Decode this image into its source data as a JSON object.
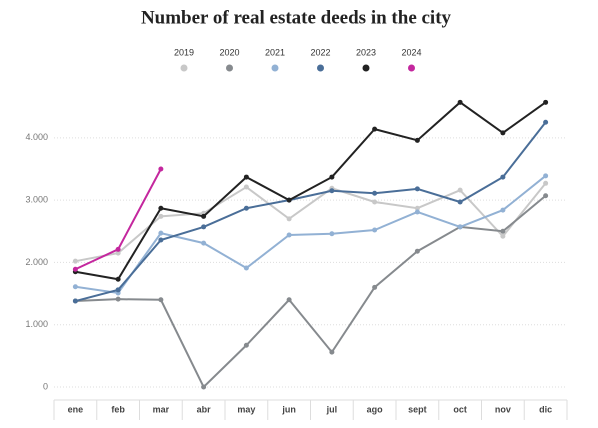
{
  "chart_data": {
    "type": "line",
    "title": "Number of real estate deeds in the city",
    "categories": [
      "ene",
      "feb",
      "mar",
      "abr",
      "may",
      "jun",
      "jul",
      "ago",
      "sept",
      "oct",
      "nov",
      "dic"
    ],
    "series": [
      {
        "name": "2019",
        "color": "#c8c8c8",
        "values": [
          2020,
          2150,
          2740,
          2790,
          3210,
          2700,
          3190,
          2970,
          2870,
          3160,
          2420,
          3270
        ]
      },
      {
        "name": "2020",
        "color": "#868a8e",
        "values": [
          1380,
          1410,
          1400,
          0,
          670,
          1400,
          560,
          1600,
          2180,
          2570,
          2500,
          3070
        ]
      },
      {
        "name": "2021",
        "color": "#92b1d4",
        "values": [
          1610,
          1510,
          2470,
          2310,
          1910,
          2440,
          2460,
          2520,
          2810,
          2570,
          2840,
          3390
        ]
      },
      {
        "name": "2022",
        "color": "#4a6e98",
        "values": [
          1380,
          1560,
          2360,
          2570,
          2870,
          3000,
          3150,
          3110,
          3180,
          2970,
          3370,
          4250
        ]
      },
      {
        "name": "2023",
        "color": "#222222",
        "values": [
          1850,
          1730,
          2870,
          2740,
          3370,
          3000,
          3370,
          4140,
          3960,
          4570,
          4080,
          4570
        ]
      },
      {
        "name": "2024",
        "color": "#c4279e",
        "values": [
          1890,
          2210,
          3500,
          null,
          null,
          null,
          null,
          null,
          null,
          null,
          null,
          null
        ]
      }
    ],
    "ylim": [
      0,
      4800
    ],
    "yticks": [
      0,
      {
        "value": 1000,
        "label": "1.000"
      },
      {
        "value": 2000,
        "label": "2.000"
      },
      {
        "value": 3000,
        "label": "3.000"
      },
      {
        "value": 4000,
        "label": "4.000"
      }
    ],
    "grid": true,
    "legend": "top"
  }
}
